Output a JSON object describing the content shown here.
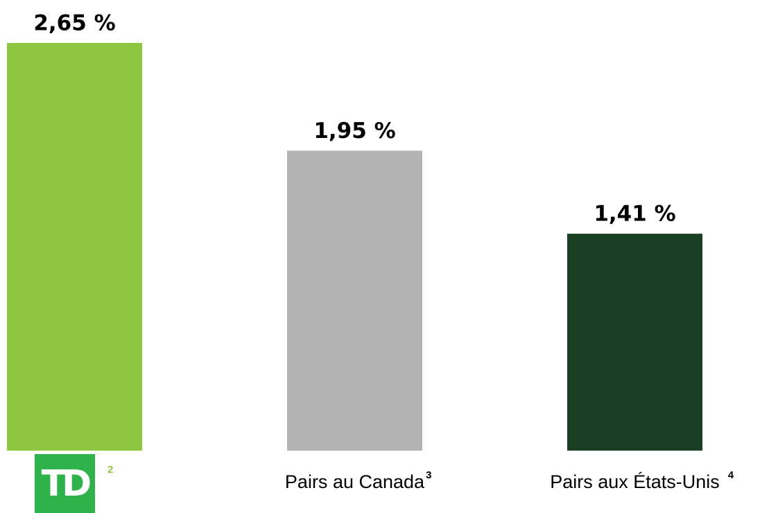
{
  "chart_data": {
    "type": "bar",
    "categories": [
      "TD",
      "Pairs au Canada",
      "Pairs aux États-Unis"
    ],
    "footnotes": [
      "2",
      "3",
      "4"
    ],
    "values": [
      2.65,
      1.95,
      1.41
    ],
    "value_labels": [
      "2,65 %",
      "1,95 %",
      "1,41 %"
    ],
    "colors": [
      "#8dc63f",
      "#b3b3b3",
      "#1a4023"
    ],
    "grid": false
  }
}
